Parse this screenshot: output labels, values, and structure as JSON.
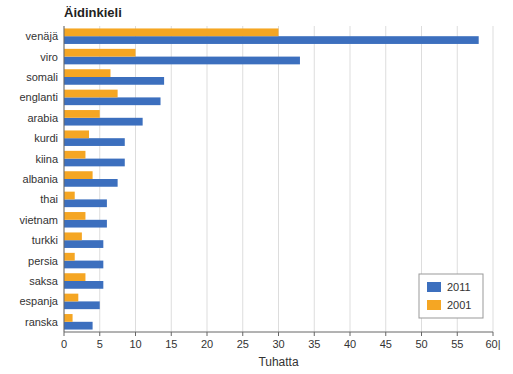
{
  "chart_data": {
    "type": "bar",
    "orientation": "horizontal",
    "title": "Äidinkieli",
    "x_label": "Tuhatta",
    "categories": [
      "venäjä",
      "viro",
      "somali",
      "englanti",
      "arabia",
      "kurdi",
      "kiina",
      "albania",
      "thai",
      "vietnam",
      "turkki",
      "persia",
      "saksa",
      "espanja",
      "ranska"
    ],
    "series": [
      {
        "name": "2011",
        "color": "#3C6FBE",
        "values": [
          58,
          33,
          14,
          13.5,
          11,
          8.5,
          8.5,
          7.5,
          6,
          6,
          5.5,
          5.5,
          5.5,
          5,
          4
        ]
      },
      {
        "name": "2001",
        "color": "#F5A623",
        "values": [
          30,
          10,
          6.5,
          7.5,
          5,
          3.5,
          3,
          4,
          1.5,
          3,
          2.5,
          1.5,
          3,
          2,
          1.2
        ]
      }
    ],
    "xlim": [
      0,
      60
    ],
    "xticks": [
      0,
      5,
      10,
      15,
      20,
      25,
      30,
      35,
      40,
      45,
      50,
      55,
      {
        "value": 60,
        "label": "60|"
      }
    ],
    "grid": true,
    "legend": "lower right"
  }
}
